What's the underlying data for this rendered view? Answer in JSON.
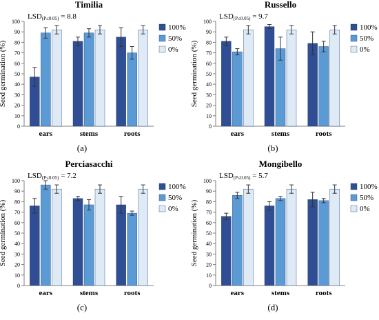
{
  "colors": {
    "s100": "#2F4E93",
    "s50": "#5B9BD5",
    "s0": "#DEEBF7",
    "axis": "#7F7F7F"
  },
  "chart_data": [
    {
      "type": "bar",
      "title": "Timilia",
      "annotation": {
        "prefix": "LSD",
        "subscript": "(P≤0.05)",
        "suffix": " = 8.8"
      },
      "ylabel": "Seed germination (%)",
      "categories": [
        "ears",
        "stems",
        "roots"
      ],
      "ylim": [
        0,
        100
      ],
      "yticks": [
        0,
        10,
        20,
        30,
        40,
        50,
        60,
        70,
        80,
        90,
        100
      ],
      "legend_position": "right",
      "series": [
        {
          "name": "100%",
          "values": [
            47,
            81,
            85
          ],
          "errors": [
            9,
            4,
            9
          ]
        },
        {
          "name": "50%",
          "values": [
            89,
            89,
            70
          ],
          "errors": [
            5,
            4,
            6
          ]
        },
        {
          "name": "0%",
          "values": [
            92,
            92,
            92
          ],
          "errors": [
            4,
            4,
            4
          ]
        }
      ],
      "panel_label": "(a)"
    },
    {
      "type": "bar",
      "title": "Russello",
      "annotation": {
        "prefix": "LSD",
        "subscript": "(P≤0.05)",
        "suffix": " = 9.7"
      },
      "ylabel": "Seed germination (%)",
      "categories": [
        "ears",
        "stems",
        "roots"
      ],
      "ylim": [
        0,
        100
      ],
      "yticks": [
        0,
        10,
        20,
        30,
        40,
        50,
        60,
        70,
        80,
        90,
        100
      ],
      "legend_position": "right",
      "series": [
        {
          "name": "100%",
          "values": [
            81,
            95,
            79
          ],
          "errors": [
            4,
            2,
            11
          ]
        },
        {
          "name": "50%",
          "values": [
            71,
            74,
            76
          ],
          "errors": [
            3,
            11,
            5
          ]
        },
        {
          "name": "0%",
          "values": [
            92,
            92,
            92
          ],
          "errors": [
            4,
            4,
            4
          ]
        }
      ],
      "panel_label": "(b)"
    },
    {
      "type": "bar",
      "title": "Perciasacchi",
      "annotation": {
        "prefix": "LSD",
        "subscript": "(P≤0.05)",
        "suffix": " = 7.2"
      },
      "ylabel": "Seed germination (%)",
      "categories": [
        "ears",
        "stems",
        "roots"
      ],
      "ylim": [
        0,
        100
      ],
      "yticks": [
        0,
        10,
        20,
        30,
        40,
        50,
        60,
        70,
        80,
        90,
        100
      ],
      "legend_position": "right",
      "series": [
        {
          "name": "100%",
          "values": [
            76,
            83,
            77
          ],
          "errors": [
            7,
            2,
            8
          ]
        },
        {
          "name": "50%",
          "values": [
            96,
            77,
            69
          ],
          "errors": [
            4,
            5,
            2
          ]
        },
        {
          "name": "0%",
          "values": [
            92,
            92,
            92
          ],
          "errors": [
            4,
            4,
            4
          ]
        }
      ],
      "panel_label": "(c)"
    },
    {
      "type": "bar",
      "title": "Mongibello",
      "annotation": {
        "prefix": "LSD",
        "subscript": "(P≤0.05)",
        "suffix": " = 5.7"
      },
      "ylabel": "Seed germination (%)",
      "categories": [
        "ears",
        "stems",
        "roots"
      ],
      "ylim": [
        0,
        100
      ],
      "yticks": [
        0,
        10,
        20,
        30,
        40,
        50,
        60,
        70,
        80,
        90,
        100
      ],
      "legend_position": "right",
      "series": [
        {
          "name": "100%",
          "values": [
            66,
            76,
            82
          ],
          "errors": [
            3,
            4,
            7
          ]
        },
        {
          "name": "50%",
          "values": [
            86,
            83,
            81
          ],
          "errors": [
            3,
            2,
            2
          ]
        },
        {
          "name": "0%",
          "values": [
            92,
            92,
            92
          ],
          "errors": [
            4,
            4,
            4
          ]
        }
      ],
      "panel_label": "(d)"
    }
  ]
}
